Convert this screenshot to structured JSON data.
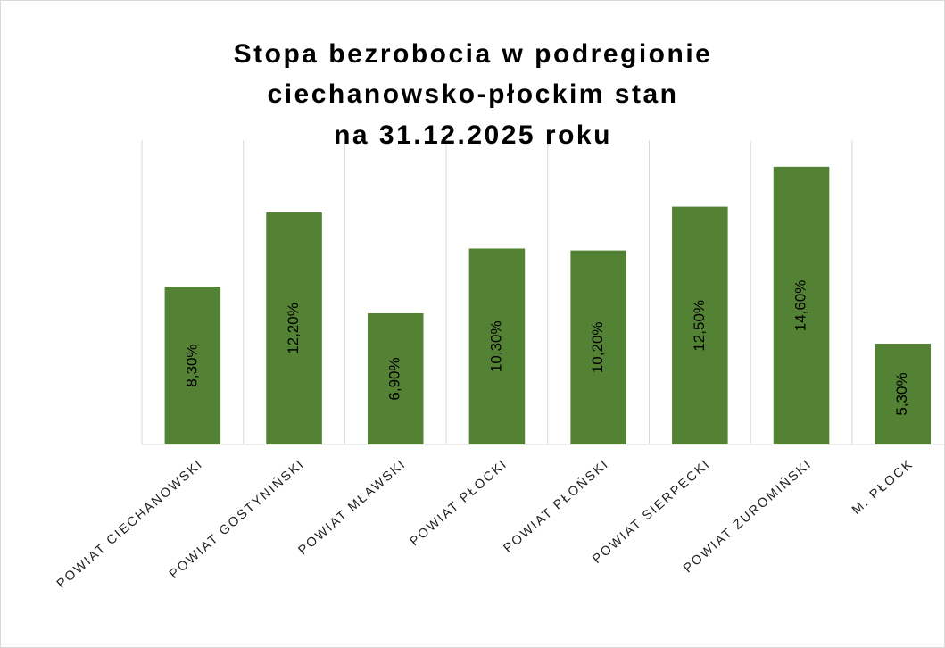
{
  "chart_data": {
    "type": "bar",
    "title": [
      "Stopa bezrobocia w podregionie",
      "ciechanowsko-płockim stan",
      "na 31.12.2025 roku"
    ],
    "categories": [
      "POWIAT CIECHANOWSKI",
      "POWIAT GOSTYNIŃSKI",
      "POWIAT MŁAWSKI",
      "POWIAT PŁOCKI",
      "POWIAT PŁOŃSKI",
      "POWIAT SIERPECKI",
      "POWIAT ŻUROMIŃSKI",
      "M. PŁOCK"
    ],
    "values": [
      8.3,
      12.2,
      6.9,
      10.3,
      10.2,
      12.5,
      14.6,
      5.3
    ],
    "value_labels": [
      "8,30%",
      "12,20%",
      "6,90%",
      "10,30%",
      "10,20%",
      "12,50%",
      "14,60%",
      "5,30%"
    ],
    "color": "#548235",
    "ylim": [
      0,
      16
    ],
    "grid": true
  }
}
